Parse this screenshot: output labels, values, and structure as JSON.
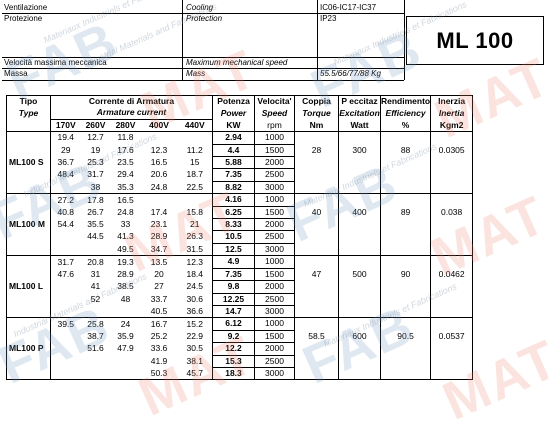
{
  "header": {
    "rows": [
      {
        "label": "Ventilazione",
        "label_en": "Cooling",
        "value": "IC06-IC17-IC37"
      },
      {
        "label": "Protezione",
        "label_en": "Protection",
        "value": "IP23"
      },
      {
        "label": "",
        "label_en": "",
        "value": ""
      },
      {
        "label": "",
        "label_en": "",
        "value": ""
      },
      {
        "label": "",
        "label_en": "",
        "value": ""
      },
      {
        "label": "Velocità massima meccanica",
        "label_en": "Maximum mechanical speed",
        "value": ""
      },
      {
        "label": "Massa",
        "label_en": "Mass",
        "value": "55.5/66/77/88 Kg"
      }
    ],
    "model": "ML 100"
  },
  "columns": {
    "tipo": "Tipo",
    "type": "Type",
    "corrente": "Corrente di Armatura",
    "armature": "Armature current",
    "volts": [
      "170V",
      "260V",
      "280V",
      "400V",
      "440V"
    ],
    "potenza": "Potenza",
    "power": "Power",
    "kw": "KW",
    "velocita": "Velocita'",
    "speed": "Speed",
    "rpm": "rpm",
    "coppia": "Coppia",
    "torque": "Torque",
    "nm": "Nm",
    "eccitaz": "P eccitaz",
    "excitation": "Excitation",
    "watt": "Watt",
    "rendimento": "Rendimento",
    "efficiency": "Efficiency",
    "pct": "%",
    "inerzia": "Inerzia",
    "inertia": "Inertia",
    "kgm2": "Kgm2"
  },
  "groups": [
    {
      "name": "ML100 S",
      "coppia": "28",
      "eccitaz": "300",
      "rend": "88",
      "inerzia": "0.0305",
      "rows": [
        [
          "19.4",
          "12.7",
          "11.8",
          "",
          "",
          "2.94",
          "1000"
        ],
        [
          "29",
          "19",
          "17.6",
          "12.3",
          "11.2",
          "4.4",
          "1500"
        ],
        [
          "36.7",
          "25.3",
          "23.5",
          "16.5",
          "15",
          "5.88",
          "2000"
        ],
        [
          "48.4",
          "31.7",
          "29.4",
          "20.6",
          "18.7",
          "7.35",
          "2500"
        ],
        [
          "",
          "38",
          "35.3",
          "24.8",
          "22.5",
          "8.82",
          "3000"
        ]
      ]
    },
    {
      "name": "ML100 M",
      "coppia": "40",
      "eccitaz": "400",
      "rend": "89",
      "inerzia": "0.038",
      "rows": [
        [
          "27.2",
          "17.8",
          "16.5",
          "",
          "",
          "4.16",
          "1000"
        ],
        [
          "40.8",
          "26.7",
          "24.8",
          "17.4",
          "15.8",
          "6.25",
          "1500"
        ],
        [
          "54.4",
          "35.5",
          "33",
          "23.1",
          "21",
          "8.33",
          "2000"
        ],
        [
          "",
          "44.5",
          "41.3",
          "28.9",
          "26.3",
          "10.5",
          "2500"
        ],
        [
          "",
          "",
          "49.5",
          "34.7",
          "31.5",
          "12.5",
          "3000"
        ]
      ]
    },
    {
      "name": "ML100 L",
      "coppia": "47",
      "eccitaz": "500",
      "rend": "90",
      "inerzia": "0.0462",
      "rows": [
        [
          "31.7",
          "20.8",
          "19.3",
          "13.5",
          "12.3",
          "4.9",
          "1000"
        ],
        [
          "47.6",
          "31",
          "28.9",
          "20",
          "18.4",
          "7.35",
          "1500"
        ],
        [
          "",
          "41",
          "38.5",
          "27",
          "24.5",
          "9.8",
          "2000"
        ],
        [
          "",
          "52",
          "48",
          "33.7",
          "30.6",
          "12.25",
          "2500"
        ],
        [
          "",
          "",
          "",
          "40.5",
          "36.6",
          "14.7",
          "3000"
        ]
      ]
    },
    {
      "name": "ML100 P",
      "coppia": "58.5",
      "eccitaz": "600",
      "rend": "90.5",
      "inerzia": "0.0537",
      "rows": [
        [
          "39.5",
          "25.8",
          "24",
          "16.7",
          "15.2",
          "6.12",
          "1000"
        ],
        [
          "",
          "38.7",
          "35.9",
          "25.2",
          "22.9",
          "9.2",
          "1500"
        ],
        [
          "",
          "51.6",
          "47.9",
          "33.6",
          "30.5",
          "12.2",
          "2000"
        ],
        [
          "",
          "",
          "",
          "41.9",
          "38.1",
          "15.3",
          "2500"
        ],
        [
          "",
          "",
          "",
          "50.3",
          "45.7",
          "18.3",
          "3000"
        ]
      ]
    }
  ],
  "watermarks": {
    "brand_a": "FAB",
    "brand_b": "MAT",
    "tagline_fr": "Materiaux Industriels et Fabrications",
    "tagline_en": "Industrial Materials and Fabrications"
  }
}
